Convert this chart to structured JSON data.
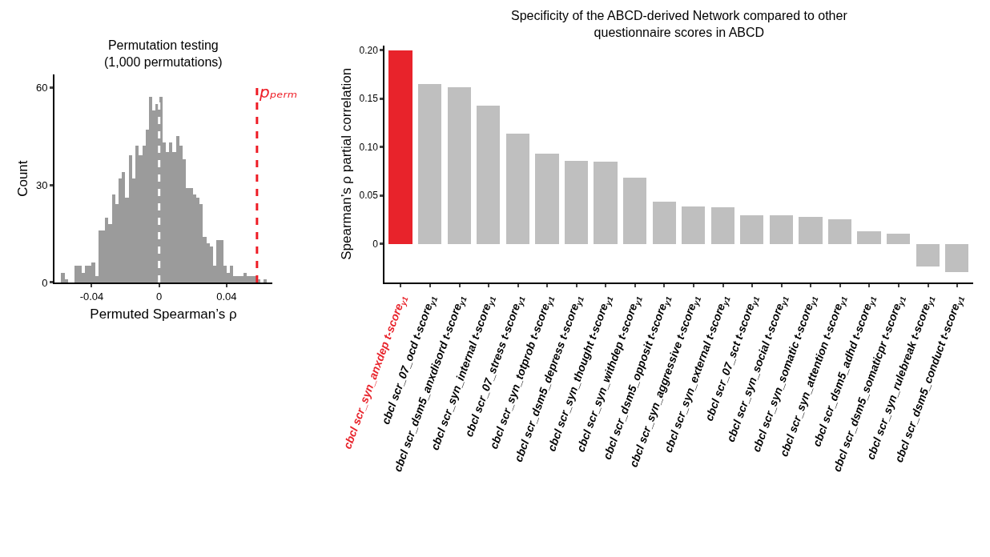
{
  "chart_data": [
    {
      "type": "histogram",
      "title": "Permutation testing\n(1,000 permutations)",
      "xlabel": "Permuted Spearman’s ρ",
      "ylabel": "Count",
      "color": "#9b9b9b",
      "bins": [
        -0.058,
        -0.056,
        -0.054,
        -0.052,
        -0.05,
        -0.048,
        -0.046,
        -0.044,
        -0.042,
        -0.04,
        -0.038,
        -0.036,
        -0.034,
        -0.032,
        -0.03,
        -0.028,
        -0.026,
        -0.024,
        -0.022,
        -0.02,
        -0.018,
        -0.016,
        -0.014,
        -0.012,
        -0.01,
        -0.008,
        -0.006,
        -0.004,
        -0.002,
        0,
        0.002,
        0.004,
        0.006,
        0.008,
        0.01,
        0.012,
        0.014,
        0.016,
        0.018,
        0.02,
        0.022,
        0.024,
        0.026,
        0.028,
        0.03,
        0.032,
        0.034,
        0.036,
        0.038,
        0.04,
        0.042,
        0.044,
        0.046,
        0.048,
        0.05,
        0.052,
        0.054,
        0.056,
        0.058,
        0.06,
        0.062,
        0.064,
        0.066
      ],
      "values": [
        3,
        1,
        0,
        0,
        5,
        5,
        3,
        5,
        5,
        6,
        2,
        16,
        16,
        20,
        18,
        27,
        24,
        32,
        34,
        26,
        39,
        32,
        42,
        39,
        42,
        47,
        57,
        53,
        55,
        57,
        43,
        40,
        43,
        40,
        45,
        42,
        38,
        29,
        29,
        27,
        26,
        24,
        14,
        12,
        11,
        5,
        13,
        13,
        5,
        3,
        5,
        2,
        2,
        2,
        3,
        2,
        2,
        2,
        1,
        0,
        1,
        0
      ],
      "xlim": [
        -0.062,
        0.067
      ],
      "xticks": [
        {
          "value": -0.04,
          "label": "-0.04"
        },
        0,
        0.04
      ],
      "ylim": [
        0,
        64
      ],
      "yticks": [
        0,
        30,
        60
      ],
      "ref_lines": [
        {
          "axis": "x",
          "value": 0,
          "color": "#ffffff",
          "line_style": "dashed"
        },
        {
          "axis": "x",
          "value": 0.058,
          "label": "pₚₑᵣₘ",
          "color": "#ee1c25",
          "line_style": "dashed"
        }
      ]
    },
    {
      "type": "bar",
      "title": "Specificity of the ABCD-derived Network compared to other\nquestionnaire scores in ABCD",
      "ylabel": "Spearman’s ρ partial correlation",
      "categories": [
        "cbcl scr_syn_anxdep t-score$_{y1}$",
        "cbcl scr_07_ocd t-score$_{y1}$",
        "cbcl scr_dsm5_anxdisord t-score$_{y1}$",
        "cbcl scr_syn_internal t-score$_{y1}$",
        "cbcl scr_07_stress t-score$_{y1}$",
        "cbcl scr_syn_totprob t-score$_{y1}$",
        "cbcl scr_dsm5_depress t-score$_{y1}$",
        "cbcl scr_syn_thought t-score$_{y1}$",
        "cbcl scr_syn_withdep t-score$_{y1}$",
        "cbcl scr_dsm5_opposit t-score$_{y1}$",
        "cbcl scr_syn_aggressive t-score$_{y1}$",
        "cbcl scr_syn_external t-score$_{y1}$",
        "cbcl scr_07_sct t-score$_{y1}$",
        "cbcl scr_syn_social t-score$_{y1}$",
        "cbcl scr_syn_somatic t-score$_{y1}$",
        "cbcl scr_syn_attention t-score$_{y1}$",
        "cbcl scr_dsm5_adhd t-score$_{y1}$",
        "cbcl scr_dsm5_somaticpr t-score$_{y1}$",
        "cbcl scr_syn_rulebreak t-score$_{y1}$",
        "cbcl scr_dsm5_conduct t-score$_{y1}$"
      ],
      "series": [
        {
          "color": "#bfbfbf",
          "values": [
            0.2,
            0.165,
            0.162,
            0.143,
            0.114,
            0.093,
            0.086,
            0.085,
            0.069,
            0.044,
            0.039,
            0.038,
            0.03,
            0.03,
            0.028,
            0.026,
            0.013,
            0.011,
            -0.023,
            -0.029
          ],
          "colors": [
            "#e8232b",
            "#bfbfbf",
            "#bfbfbf",
            "#bfbfbf",
            "#bfbfbf",
            "#bfbfbf",
            "#bfbfbf",
            "#bfbfbf",
            "#bfbfbf",
            "#bfbfbf",
            "#bfbfbf",
            "#bfbfbf",
            "#bfbfbf",
            "#bfbfbf",
            "#bfbfbf",
            "#bfbfbf",
            "#bfbfbf",
            "#bfbfbf",
            "#bfbfbf",
            "#bfbfbf"
          ]
        }
      ],
      "ylim": [
        -0.04,
        0.205
      ],
      "yticks": [
        0,
        0.05,
        {
          "value": 0.1,
          "label": "0.10"
        },
        0.15,
        {
          "value": 0.2,
          "label": "0.20"
        }
      ]
    }
  ]
}
